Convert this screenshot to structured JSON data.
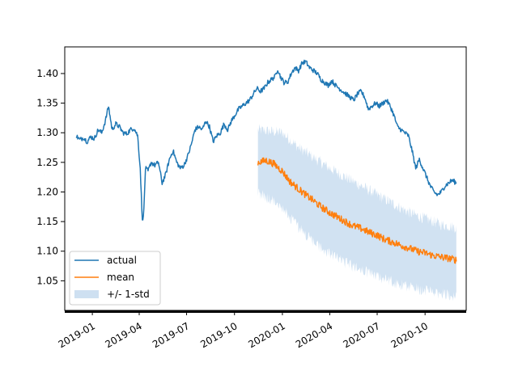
{
  "chart_data": {
    "type": "line",
    "title": "",
    "xlabel": "",
    "ylabel": "",
    "x_range": [
      "2018-11-09",
      "2020-12-19"
    ],
    "ylim": [
      1.0,
      1.445
    ],
    "grid": false,
    "legend_location": "lower-left",
    "x_ticks": [
      {
        "date": "2019-01-01",
        "label": "2019-01"
      },
      {
        "date": "2019-04-01",
        "label": "2019-04"
      },
      {
        "date": "2019-07-01",
        "label": "2019-07"
      },
      {
        "date": "2019-10-01",
        "label": "2019-10"
      },
      {
        "date": "2020-01-01",
        "label": "2020-01"
      },
      {
        "date": "2020-04-01",
        "label": "2020-04"
      },
      {
        "date": "2020-07-01",
        "label": "2020-07"
      },
      {
        "date": "2020-10-01",
        "label": "2020-10"
      }
    ],
    "y_ticks": [
      {
        "value": 1.05,
        "label": "1.05"
      },
      {
        "value": 1.1,
        "label": "1.10"
      },
      {
        "value": 1.15,
        "label": "1.15"
      },
      {
        "value": 1.2,
        "label": "1.20"
      },
      {
        "value": 1.25,
        "label": "1.25"
      },
      {
        "value": 1.3,
        "label": "1.30"
      },
      {
        "value": 1.35,
        "label": "1.35"
      },
      {
        "value": 1.4,
        "label": "1.40"
      }
    ],
    "series": [
      {
        "name": "actual",
        "color": "#1f77b4",
        "points": [
          [
            "2018-12-01",
            1.295
          ],
          [
            "2018-12-08",
            1.288
          ],
          [
            "2018-12-15",
            1.292
          ],
          [
            "2018-12-22",
            1.285
          ],
          [
            "2018-12-29",
            1.293
          ],
          [
            "2019-01-05",
            1.29
          ],
          [
            "2019-01-12",
            1.305
          ],
          [
            "2019-01-19",
            1.3
          ],
          [
            "2019-01-26",
            1.32
          ],
          [
            "2019-02-01",
            1.345
          ],
          [
            "2019-02-08",
            1.305
          ],
          [
            "2019-02-15",
            1.315
          ],
          [
            "2019-02-22",
            1.31
          ],
          [
            "2019-03-01",
            1.3
          ],
          [
            "2019-03-08",
            1.298
          ],
          [
            "2019-03-15",
            1.305
          ],
          [
            "2019-03-22",
            1.308
          ],
          [
            "2019-03-29",
            1.295
          ],
          [
            "2019-04-03",
            1.24
          ],
          [
            "2019-04-07",
            1.15
          ],
          [
            "2019-04-10",
            1.17
          ],
          [
            "2019-04-13",
            1.24
          ],
          [
            "2019-04-18",
            1.235
          ],
          [
            "2019-04-24",
            1.25
          ],
          [
            "2019-05-01",
            1.245
          ],
          [
            "2019-05-08",
            1.25
          ],
          [
            "2019-05-15",
            1.215
          ],
          [
            "2019-05-22",
            1.23
          ],
          [
            "2019-05-29",
            1.255
          ],
          [
            "2019-06-05",
            1.27
          ],
          [
            "2019-06-12",
            1.25
          ],
          [
            "2019-06-19",
            1.24
          ],
          [
            "2019-06-26",
            1.245
          ],
          [
            "2019-07-03",
            1.26
          ],
          [
            "2019-07-10",
            1.28
          ],
          [
            "2019-07-17",
            1.305
          ],
          [
            "2019-07-24",
            1.31
          ],
          [
            "2019-07-31",
            1.305
          ],
          [
            "2019-08-07",
            1.32
          ],
          [
            "2019-08-14",
            1.31
          ],
          [
            "2019-08-21",
            1.285
          ],
          [
            "2019-08-28",
            1.295
          ],
          [
            "2019-09-04",
            1.3
          ],
          [
            "2019-09-11",
            1.315
          ],
          [
            "2019-09-18",
            1.305
          ],
          [
            "2019-09-25",
            1.32
          ],
          [
            "2019-10-02",
            1.33
          ],
          [
            "2019-10-09",
            1.34
          ],
          [
            "2019-10-16",
            1.345
          ],
          [
            "2019-10-23",
            1.35
          ],
          [
            "2019-10-30",
            1.355
          ],
          [
            "2019-11-06",
            1.365
          ],
          [
            "2019-11-13",
            1.375
          ],
          [
            "2019-11-20",
            1.37
          ],
          [
            "2019-11-27",
            1.375
          ],
          [
            "2019-12-04",
            1.385
          ],
          [
            "2019-12-11",
            1.39
          ],
          [
            "2019-12-18",
            1.395
          ],
          [
            "2019-12-23",
            1.408
          ],
          [
            "2019-12-28",
            1.395
          ],
          [
            "2020-01-04",
            1.385
          ],
          [
            "2020-01-11",
            1.385
          ],
          [
            "2020-01-18",
            1.4
          ],
          [
            "2020-01-25",
            1.41
          ],
          [
            "2020-02-01",
            1.405
          ],
          [
            "2020-02-08",
            1.418
          ],
          [
            "2020-02-15",
            1.42
          ],
          [
            "2020-02-22",
            1.41
          ],
          [
            "2020-03-01",
            1.405
          ],
          [
            "2020-03-08",
            1.4
          ],
          [
            "2020-03-15",
            1.39
          ],
          [
            "2020-03-22",
            1.385
          ],
          [
            "2020-03-29",
            1.38
          ],
          [
            "2020-04-05",
            1.388
          ],
          [
            "2020-04-12",
            1.38
          ],
          [
            "2020-04-19",
            1.375
          ],
          [
            "2020-04-26",
            1.37
          ],
          [
            "2020-05-03",
            1.365
          ],
          [
            "2020-05-10",
            1.36
          ],
          [
            "2020-05-17",
            1.355
          ],
          [
            "2020-05-24",
            1.365
          ],
          [
            "2020-05-31",
            1.37
          ],
          [
            "2020-06-07",
            1.36
          ],
          [
            "2020-06-14",
            1.34
          ],
          [
            "2020-06-21",
            1.345
          ],
          [
            "2020-06-28",
            1.35
          ],
          [
            "2020-07-05",
            1.345
          ],
          [
            "2020-07-12",
            1.35
          ],
          [
            "2020-07-19",
            1.355
          ],
          [
            "2020-07-26",
            1.345
          ],
          [
            "2020-08-02",
            1.33
          ],
          [
            "2020-08-09",
            1.31
          ],
          [
            "2020-08-16",
            1.305
          ],
          [
            "2020-08-23",
            1.3
          ],
          [
            "2020-08-30",
            1.295
          ],
          [
            "2020-09-06",
            1.27
          ],
          [
            "2020-09-13",
            1.24
          ],
          [
            "2020-09-20",
            1.255
          ],
          [
            "2020-09-27",
            1.24
          ],
          [
            "2020-10-04",
            1.225
          ],
          [
            "2020-10-11",
            1.21
          ],
          [
            "2020-10-18",
            1.2
          ],
          [
            "2020-10-25",
            1.195
          ],
          [
            "2020-11-01",
            1.2
          ],
          [
            "2020-11-08",
            1.21
          ],
          [
            "2020-11-15",
            1.215
          ],
          [
            "2020-11-22",
            1.22
          ],
          [
            "2020-11-30",
            1.215
          ]
        ]
      },
      {
        "name": "mean",
        "color": "#ff7f0e",
        "start": "2019-11-15",
        "end": "2020-11-30",
        "start_value": 1.25,
        "end_value": 1.085,
        "points": [
          [
            "2019-11-15",
            1.25
          ],
          [
            "2019-12-01",
            1.253
          ],
          [
            "2019-12-15",
            1.248
          ],
          [
            "2020-01-01",
            1.235
          ],
          [
            "2020-01-15",
            1.218
          ],
          [
            "2020-02-01",
            1.205
          ],
          [
            "2020-02-15",
            1.195
          ],
          [
            "2020-03-01",
            1.185
          ],
          [
            "2020-03-15",
            1.175
          ],
          [
            "2020-04-01",
            1.165
          ],
          [
            "2020-04-15",
            1.158
          ],
          [
            "2020-05-01",
            1.15
          ],
          [
            "2020-05-15",
            1.143
          ],
          [
            "2020-06-01",
            1.138
          ],
          [
            "2020-06-15",
            1.132
          ],
          [
            "2020-07-01",
            1.127
          ],
          [
            "2020-07-15",
            1.12
          ],
          [
            "2020-08-01",
            1.115
          ],
          [
            "2020-08-15",
            1.11
          ],
          [
            "2020-09-01",
            1.105
          ],
          [
            "2020-09-15",
            1.1
          ],
          [
            "2020-10-01",
            1.097
          ],
          [
            "2020-10-15",
            1.093
          ],
          [
            "2020-11-01",
            1.09
          ],
          [
            "2020-11-15",
            1.088
          ],
          [
            "2020-11-30",
            1.085
          ]
        ]
      },
      {
        "name": "+/- 1-std",
        "color": "#c6dbef",
        "type": "area",
        "lower": [
          [
            "2019-11-15",
            1.2
          ],
          [
            "2020-01-01",
            1.175
          ],
          [
            "2020-02-01",
            1.14
          ],
          [
            "2020-03-01",
            1.115
          ],
          [
            "2020-04-01",
            1.095
          ],
          [
            "2020-05-01",
            1.08
          ],
          [
            "2020-06-01",
            1.068
          ],
          [
            "2020-07-01",
            1.058
          ],
          [
            "2020-08-01",
            1.048
          ],
          [
            "2020-09-01",
            1.04
          ],
          [
            "2020-10-01",
            1.033
          ],
          [
            "2020-11-01",
            1.028
          ],
          [
            "2020-11-30",
            1.025
          ]
        ],
        "upper": [
          [
            "2019-11-15",
            1.305
          ],
          [
            "2020-01-01",
            1.3
          ],
          [
            "2020-02-01",
            1.275
          ],
          [
            "2020-03-01",
            1.258
          ],
          [
            "2020-04-01",
            1.24
          ],
          [
            "2020-05-01",
            1.225
          ],
          [
            "2020-06-01",
            1.21
          ],
          [
            "2020-07-01",
            1.195
          ],
          [
            "2020-08-01",
            1.18
          ],
          [
            "2020-09-01",
            1.165
          ],
          [
            "2020-10-01",
            1.155
          ],
          [
            "2020-11-01",
            1.145
          ],
          [
            "2020-11-30",
            1.14
          ]
        ]
      }
    ],
    "legend": [
      {
        "label": "actual",
        "kind": "line",
        "color": "#1f77b4"
      },
      {
        "label": "mean",
        "kind": "line",
        "color": "#ff7f0e"
      },
      {
        "label": "+/- 1-std",
        "kind": "patch",
        "color": "#c6dbef"
      }
    ]
  }
}
